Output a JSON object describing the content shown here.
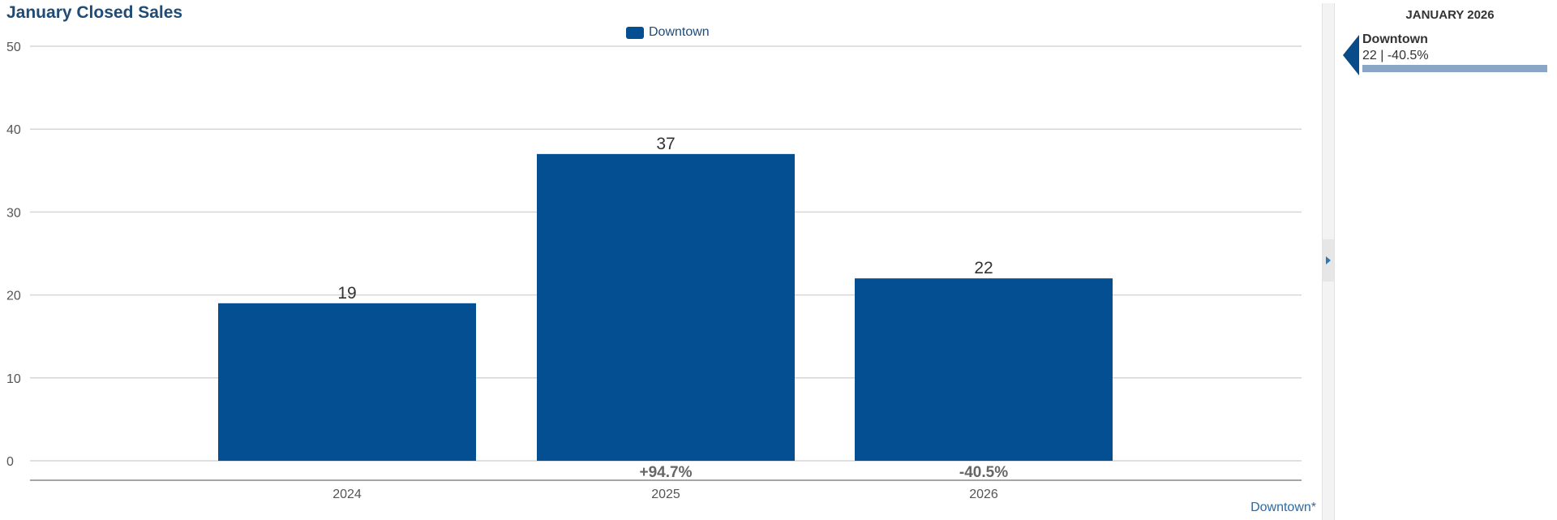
{
  "chart_data": {
    "type": "bar",
    "title": "January Closed Sales",
    "categories": [
      "2024",
      "2025",
      "2026"
    ],
    "series": [
      {
        "name": "Downtown",
        "values": [
          19,
          37,
          22
        ],
        "color": "#034f91"
      }
    ],
    "change_labels": [
      "",
      "+94.7%",
      "-40.5%"
    ],
    "ylim": [
      0,
      50
    ],
    "yticks": [
      0,
      10,
      20,
      30,
      40,
      50
    ],
    "grid": true,
    "legend": "top-center",
    "xlabel": "",
    "ylabel": ""
  },
  "footer": {
    "link_label": "Downtown*"
  },
  "side_panel": {
    "heading": "JANUARY 2026",
    "item": {
      "name": "Downtown",
      "stats": "22 | -40.5%",
      "bar_color": "#89a6c5",
      "marker_color": "#0a4c8a"
    }
  },
  "colors": {
    "title": "#1f4b77",
    "grid": "#d6d6d6",
    "axis": "#888888",
    "tick_text": "#555555",
    "change_text": "#666666"
  }
}
